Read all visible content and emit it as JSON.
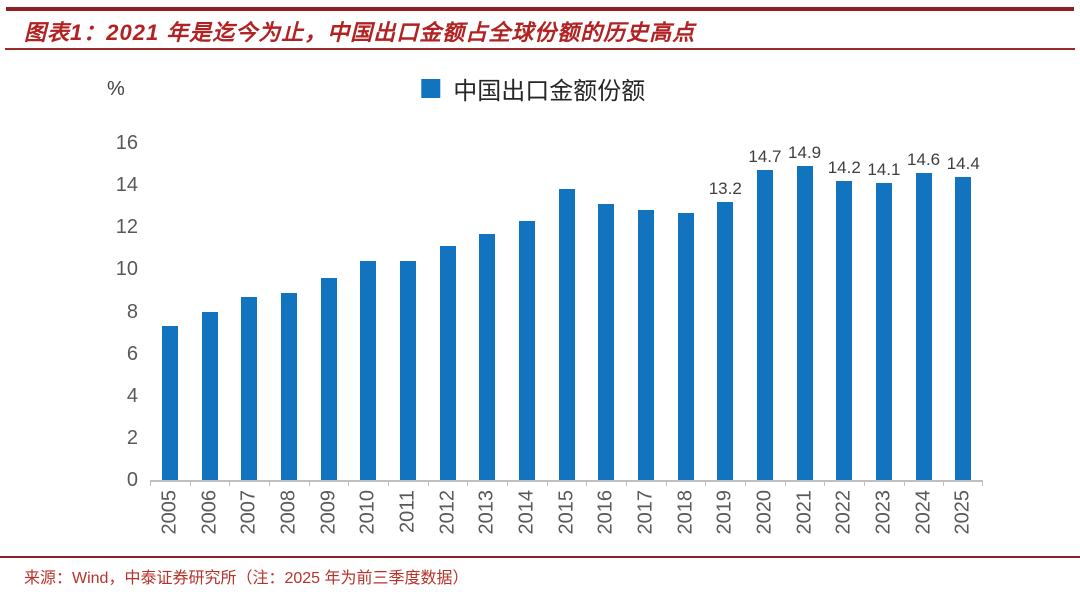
{
  "header": {
    "title": "图表1：2021 年是迄今为止，中国出口金额占全球份额的历史高点"
  },
  "legend": {
    "label": "中国出口金额份额"
  },
  "footer": {
    "source": "来源：Wind，中泰证券研究所（注：2025 年为前三季度数据）"
  },
  "chart_data": {
    "type": "bar",
    "title": "中国出口金额份额",
    "y_unit": "%",
    "ylim": [
      0,
      16
    ],
    "yticks": [
      0,
      2,
      4,
      6,
      8,
      10,
      12,
      14,
      16
    ],
    "grid": false,
    "legend_position": "top-center",
    "categories": [
      "2005",
      "2006",
      "2007",
      "2008",
      "2009",
      "2010",
      "2011",
      "2012",
      "2013",
      "2014",
      "2015",
      "2016",
      "2017",
      "2018",
      "2019",
      "2020",
      "2021",
      "2022",
      "2023",
      "2024",
      "2025"
    ],
    "values": [
      7.3,
      8.0,
      8.7,
      8.9,
      9.6,
      10.4,
      10.4,
      11.1,
      11.7,
      12.3,
      13.8,
      13.1,
      12.8,
      12.7,
      13.2,
      14.7,
      14.9,
      14.2,
      14.1,
      14.6,
      14.4
    ],
    "data_labels": [
      null,
      null,
      null,
      null,
      null,
      null,
      null,
      null,
      null,
      null,
      null,
      null,
      null,
      null,
      "13.2",
      "14.7",
      "14.9",
      "14.2",
      "14.1",
      "14.6",
      "14.4"
    ],
    "bar_color": "#1273be"
  },
  "colors": {
    "accent_red": "#b22222",
    "rule_red": "#8e2023",
    "bar_blue": "#1273be",
    "axis_gray": "#bfbfbf",
    "tick_label_gray": "#595959"
  }
}
